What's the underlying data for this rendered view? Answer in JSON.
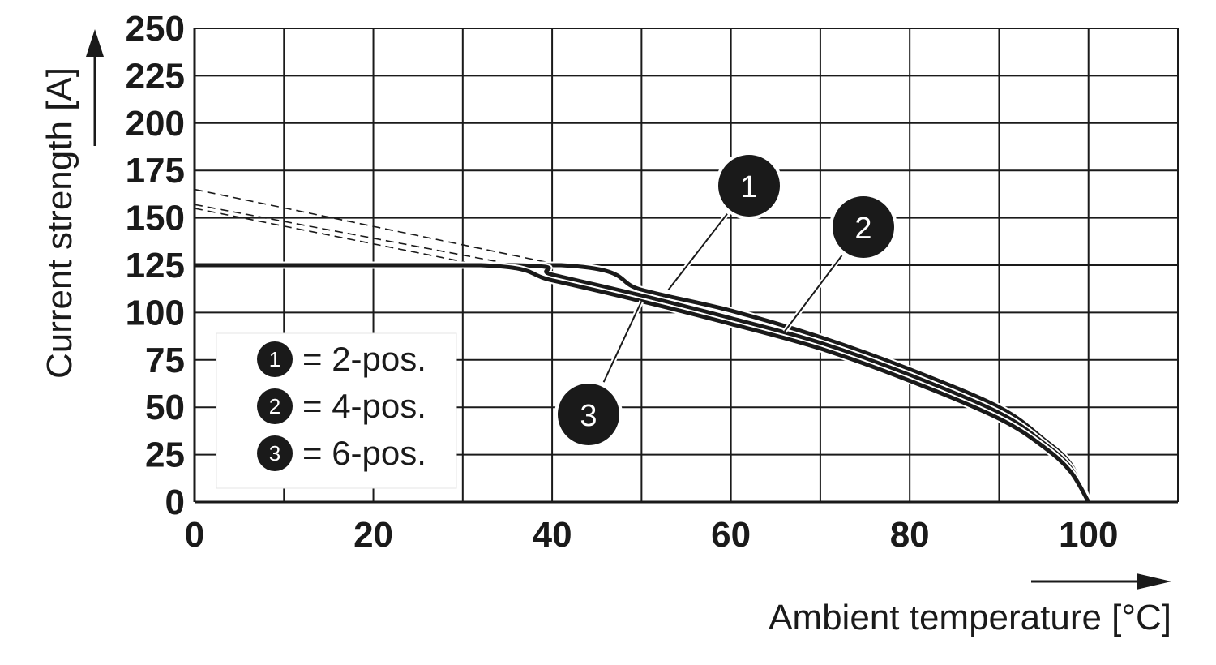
{
  "chart_data": {
    "type": "line",
    "title": "",
    "xlabel": "Ambient temperature [°C]",
    "ylabel": "Current strength [A]",
    "xlim": [
      0,
      110
    ],
    "ylim": [
      0,
      250
    ],
    "x_ticks": [
      0,
      20,
      40,
      60,
      80,
      100
    ],
    "y_ticks": [
      0,
      25,
      50,
      75,
      100,
      125,
      150,
      175,
      200,
      225,
      250
    ],
    "grid": true,
    "legend_position": "left-middle",
    "legend": [
      {
        "marker": "1",
        "text": "= 2-pos."
      },
      {
        "marker": "2",
        "text": "= 4-pos."
      },
      {
        "marker": "3",
        "text": "= 6-pos."
      }
    ],
    "series": [
      {
        "name": "2-pos.",
        "marker": "1",
        "x": [
          0,
          41,
          50,
          60,
          70,
          80,
          90,
          95,
          98,
          100
        ],
        "y": [
          125,
          125,
          112,
          101,
          87,
          70,
          50,
          33,
          20,
          0
        ],
        "extrapolation": {
          "x": [
            0,
            41
          ],
          "y": [
            165,
            125
          ]
        }
      },
      {
        "name": "4-pos.",
        "marker": "2",
        "x": [
          0,
          36,
          40,
          50,
          60,
          70,
          80,
          90,
          95,
          98,
          100
        ],
        "y": [
          125,
          125,
          120,
          109,
          97,
          84,
          67,
          47,
          31,
          18,
          0
        ],
        "extrapolation": {
          "x": [
            0,
            36
          ],
          "y": [
            157,
            125
          ]
        }
      },
      {
        "name": "6-pos.",
        "marker": "3",
        "x": [
          0,
          32,
          40,
          50,
          60,
          70,
          80,
          90,
          95,
          98,
          100
        ],
        "y": [
          125,
          125,
          117,
          106,
          94,
          81,
          64,
          44,
          29,
          16,
          0
        ],
        "extrapolation": {
          "x": [
            0,
            32
          ],
          "y": [
            155,
            125
          ]
        }
      }
    ]
  }
}
